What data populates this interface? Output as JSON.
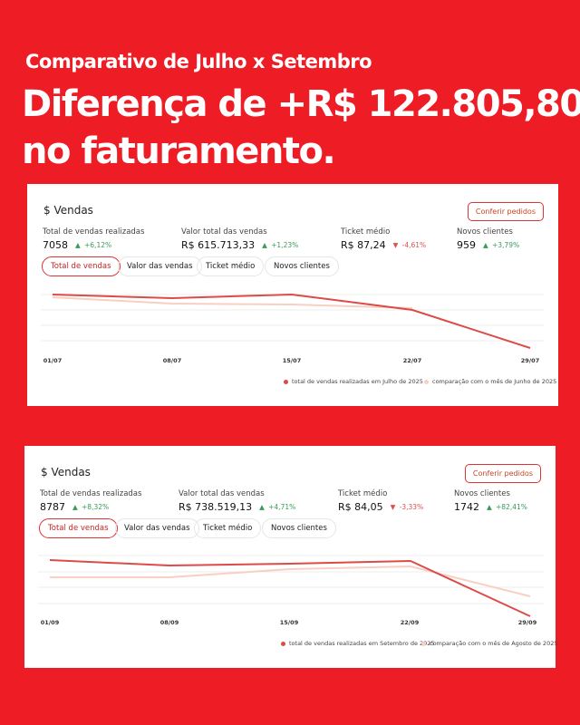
{
  "header": {
    "subtitle": "Comparativo de Julho x Setembro",
    "title_lines": [
      "Diferença de +R$ 122.805,80",
      "no faturamento."
    ]
  },
  "cards": [
    {
      "title": "$ Vendas",
      "button": "Conferir pedidos",
      "metrics": [
        {
          "label": "Total de vendas realizadas",
          "value": "7058",
          "change": "+6,12%"
        },
        {
          "label": "Valor total das vendas",
          "value": "R$ 615.713,33",
          "change": "+1,23%"
        },
        {
          "label": "Ticket médio",
          "value": "R$ 87,24",
          "change": "-4,61%"
        },
        {
          "label": "Novos clientes",
          "value": "959",
          "change": "+3,79%"
        }
      ],
      "tabs": [
        "Total de vendas",
        "Valor das vendas",
        "Ticket médio",
        "Novos clientes"
      ],
      "x_labels": [
        "01/07",
        "08/07",
        "15/07",
        "22/07",
        "29/07"
      ],
      "legend": [
        "total de vendas realizadas em Julho de 2025",
        "comparação com o mês de Junho de 2025"
      ]
    },
    {
      "title": "$ Vendas",
      "button": "Conferir pedidos",
      "metrics": [
        {
          "label": "Total de vendas realizadas",
          "value": "8787",
          "change": "+8,32%"
        },
        {
          "label": "Valor total das vendas",
          "value": "R$ 738.519,13",
          "change": "+4,71%"
        },
        {
          "label": "Ticket médio",
          "value": "R$ 84,05",
          "change": "-3,33%"
        },
        {
          "label": "Novos clientes",
          "value": "1742",
          "change": "+82,41%"
        }
      ],
      "tabs": [
        "Total de vendas",
        "Valor das vendas",
        "Ticket médio",
        "Novos clientes"
      ],
      "x_labels": [
        "01/09",
        "08/09",
        "15/09",
        "22/09",
        "29/09"
      ],
      "legend": [
        "total de vendas realizadas em Setembro de 2025",
        "comparação com o mês de Agosto de 2025"
      ]
    }
  ]
}
